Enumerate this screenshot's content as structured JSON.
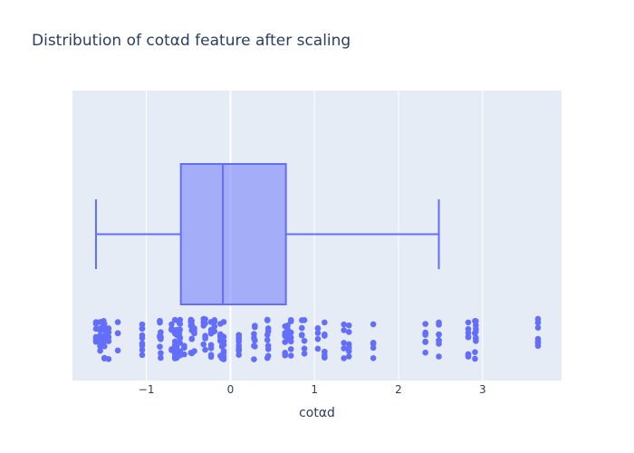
{
  "chart_data": {
    "type": "box",
    "orientation": "horizontal",
    "title": "Distribution of cotαd feature after scaling",
    "xlabel": "cotαd",
    "ylabel": "",
    "xlim": [
      -1.88,
      3.94
    ],
    "x_ticks": [
      -1,
      0,
      1,
      2,
      3
    ],
    "x_tick_labels": [
      "−1",
      "0",
      "1",
      "2",
      "3"
    ],
    "grid": true,
    "box": {
      "lower_whisker": -1.6,
      "q1": -0.59,
      "median": -0.09,
      "q3": 0.66,
      "upper_whisker": 2.48
    },
    "points_shown": "all",
    "points_x": [
      -1.6,
      -1.55,
      -1.51,
      -1.5,
      -1.45,
      -1.34,
      -1.05,
      -0.84,
      -0.83,
      -0.7,
      -0.66,
      -0.64,
      -0.61,
      -0.6,
      -0.55,
      -0.47,
      -0.46,
      -0.43,
      -0.32,
      -0.3,
      -0.23,
      -0.19,
      -0.12,
      -0.1,
      -0.08,
      0.1,
      0.28,
      0.29,
      0.44,
      0.45,
      0.65,
      0.68,
      0.72,
      0.85,
      0.88,
      1.04,
      1.12,
      1.35,
      1.41,
      1.7,
      2.32,
      2.48,
      2.83,
      2.91,
      2.92,
      3.66
    ],
    "colors": {
      "box_line": "#636efa",
      "box_fill": "#636efa",
      "points": "#636efa",
      "plot_background": "#e5ecf6",
      "grid": "#ffffff",
      "text": "#2a3f5f"
    }
  }
}
